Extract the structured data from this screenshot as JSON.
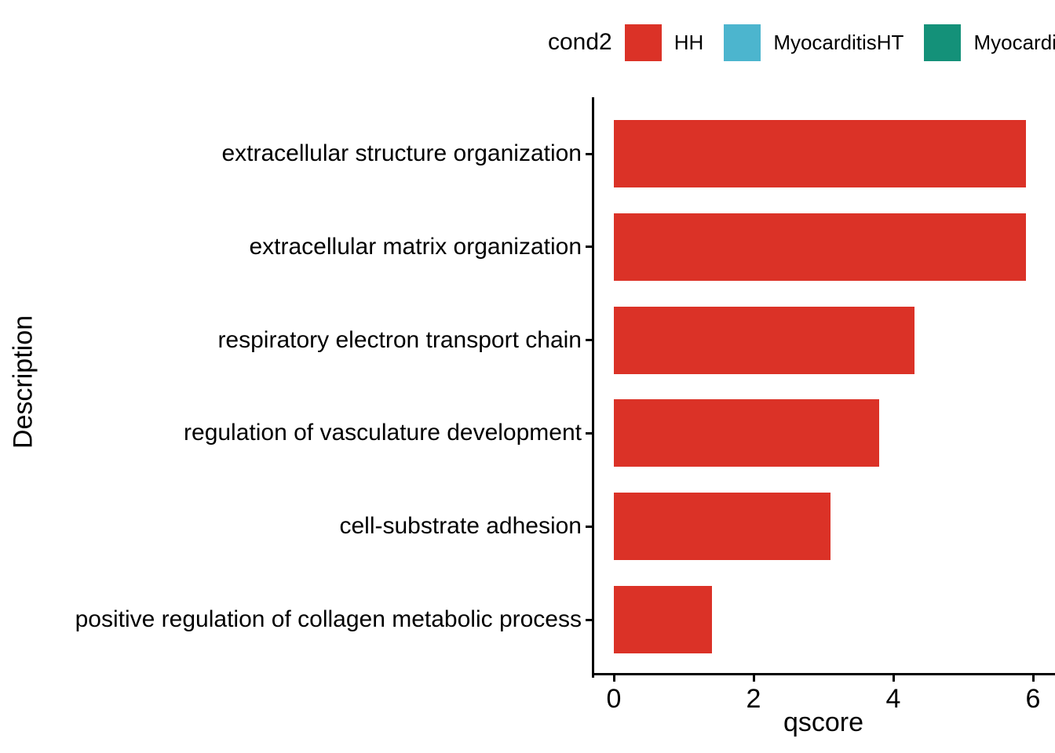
{
  "figure": {
    "background": "#ffffff",
    "axis_color": "#000000",
    "text_color": "#000000"
  },
  "chart_data": {
    "type": "bar",
    "orientation": "horizontal",
    "title": "",
    "xlabel": "qscore",
    "ylabel": "Description",
    "xlim": [
      0,
      6
    ],
    "xticks": [
      "0",
      "2",
      "4",
      "6"
    ],
    "grid": "off",
    "categories": [
      "extracellular structure organization",
      "extracellular matrix organization",
      "respiratory electron transport chain",
      "regulation of vasculature development",
      "cell-substrate adhesion",
      "positive regulation of collagen metabolic process"
    ],
    "values": [
      5.9,
      5.9,
      4.3,
      3.8,
      3.1,
      1.4
    ],
    "bar_color": "#DB3227",
    "legend": {
      "title": "cond2",
      "position": "top",
      "entries": [
        {
          "label": "HH",
          "color": "#DB3227",
          "clipped": false
        },
        {
          "label": "MyocarditisHT",
          "color": "#4CB5CE",
          "clipped": false
        },
        {
          "label": "Myocarditis",
          "color": "#149179",
          "clipped": true
        }
      ]
    }
  }
}
